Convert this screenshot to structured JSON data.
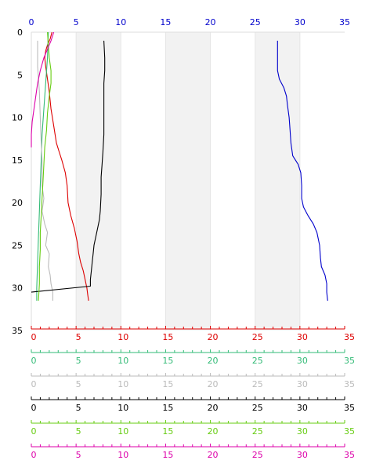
{
  "chart_data": {
    "type": "line",
    "orientation": "depth-profile",
    "y_axis": {
      "range": [
        0,
        35
      ],
      "ticks": [
        "0",
        "5",
        "10",
        "15",
        "20",
        "25",
        "30",
        "35"
      ],
      "inverted": true
    },
    "bands": [
      {
        "from": 5,
        "to": 10,
        "color": "#f2f2f2"
      },
      {
        "from": 15,
        "to": 20,
        "color": "#f2f2f2"
      },
      {
        "from": 25,
        "to": 30,
        "color": "#f2f2f2"
      }
    ],
    "axes": [
      {
        "id": "blue",
        "position": "top",
        "color": "#0000cc",
        "range": [
          0,
          35
        ],
        "ticks": [
          "0",
          "5",
          "10",
          "15",
          "20",
          "25",
          "30",
          "35"
        ]
      },
      {
        "id": "red",
        "position": "bottom",
        "color": "#dd0000",
        "range": [
          0,
          35
        ],
        "ticks": [
          "0",
          "5",
          "10",
          "15",
          "20",
          "25",
          "30",
          "35"
        ]
      },
      {
        "id": "mediumgreen",
        "position": "bottom",
        "color": "#33bb77",
        "range": [
          0,
          35
        ],
        "ticks": [
          "0",
          "5",
          "10",
          "15",
          "20",
          "25",
          "30",
          "35"
        ]
      },
      {
        "id": "gray",
        "position": "bottom",
        "color": "#bbbbbb",
        "range": [
          0,
          35
        ],
        "ticks": [
          "0",
          "5",
          "10",
          "15",
          "20",
          "25",
          "30",
          "35"
        ]
      },
      {
        "id": "black",
        "position": "bottom",
        "color": "#000000",
        "range": [
          0,
          35
        ],
        "ticks": [
          "0",
          "5",
          "10",
          "15",
          "20",
          "25",
          "30",
          "35"
        ]
      },
      {
        "id": "lightgreen",
        "position": "bottom",
        "color": "#66cc11",
        "range": [
          0,
          35
        ],
        "ticks": [
          "0",
          "5",
          "10",
          "15",
          "20",
          "25",
          "30",
          "35"
        ]
      },
      {
        "id": "magenta",
        "position": "bottom",
        "color": "#dd00aa",
        "range": [
          0,
          35
        ],
        "ticks": [
          "0",
          "5",
          "10",
          "15",
          "20",
          "25",
          "30",
          "35"
        ]
      }
    ],
    "series": [
      {
        "axis": "blue",
        "color": "#0000cc",
        "points": [
          [
            27.5,
            1.0
          ],
          [
            27.5,
            3.0
          ],
          [
            27.5,
            4.5
          ],
          [
            27.7,
            5.5
          ],
          [
            28.2,
            6.5
          ],
          [
            28.5,
            7.5
          ],
          [
            28.6,
            8.5
          ],
          [
            28.8,
            10.0
          ],
          [
            28.9,
            11.5
          ],
          [
            29.0,
            13.0
          ],
          [
            29.2,
            14.5
          ],
          [
            29.8,
            15.5
          ],
          [
            30.1,
            16.5
          ],
          [
            30.2,
            18.0
          ],
          [
            30.2,
            19.5
          ],
          [
            30.4,
            20.5
          ],
          [
            30.9,
            21.5
          ],
          [
            31.5,
            22.5
          ],
          [
            31.9,
            23.5
          ],
          [
            32.2,
            25.0
          ],
          [
            32.3,
            26.5
          ],
          [
            32.4,
            27.5
          ],
          [
            32.8,
            28.5
          ],
          [
            33.0,
            29.5
          ],
          [
            33.0,
            30.5
          ],
          [
            33.1,
            31.5
          ]
        ]
      },
      {
        "axis": "red",
        "color": "#dd0000",
        "points": [
          [
            2.3,
            0.0
          ],
          [
            2.1,
            0.8
          ],
          [
            1.8,
            1.5
          ],
          [
            1.6,
            2.2
          ],
          [
            1.5,
            3.0
          ],
          [
            1.6,
            4.0
          ],
          [
            1.8,
            5.5
          ],
          [
            2.0,
            7.0
          ],
          [
            2.2,
            9.0
          ],
          [
            2.5,
            11.0
          ],
          [
            2.8,
            13.0
          ],
          [
            3.1,
            14.0
          ],
          [
            3.4,
            15.0
          ],
          [
            3.8,
            16.5
          ],
          [
            4.0,
            18.0
          ],
          [
            4.1,
            20.0
          ],
          [
            4.4,
            21.5
          ],
          [
            4.8,
            23.0
          ],
          [
            5.1,
            24.5
          ],
          [
            5.3,
            26.0
          ],
          [
            5.5,
            27.0
          ],
          [
            5.8,
            28.0
          ],
          [
            6.0,
            29.0
          ],
          [
            6.2,
            30.0
          ],
          [
            6.3,
            30.8
          ],
          [
            6.4,
            31.5
          ]
        ]
      },
      {
        "axis": "mediumgreen",
        "color": "#33bb77",
        "points": [
          [
            1.9,
            0.0
          ],
          [
            1.8,
            3.0
          ],
          [
            1.6,
            6.0
          ],
          [
            1.4,
            9.0
          ],
          [
            1.2,
            12.0
          ],
          [
            1.1,
            15.0
          ],
          [
            1.0,
            18.0
          ],
          [
            0.9,
            21.0
          ],
          [
            0.8,
            24.0
          ],
          [
            0.7,
            27.0
          ],
          [
            0.6,
            30.0
          ],
          [
            0.6,
            31.5
          ]
        ]
      },
      {
        "axis": "gray",
        "color": "#bbbbbb",
        "points": [
          [
            0.7,
            1.0
          ],
          [
            0.7,
            4.0
          ],
          [
            0.9,
            7.0
          ],
          [
            1.0,
            10.0
          ],
          [
            1.1,
            13.0
          ],
          [
            1.2,
            15.0
          ],
          [
            1.2,
            18.0
          ],
          [
            1.4,
            19.5
          ],
          [
            1.2,
            21.0
          ],
          [
            1.5,
            22.5
          ],
          [
            1.8,
            23.5
          ],
          [
            1.6,
            25.0
          ],
          [
            2.0,
            26.0
          ],
          [
            1.9,
            27.5
          ],
          [
            2.1,
            28.5
          ],
          [
            2.2,
            29.5
          ],
          [
            2.4,
            30.5
          ],
          [
            2.4,
            31.5
          ]
        ]
      },
      {
        "axis": "black",
        "color": "#000000",
        "points": [
          [
            0.0,
            30.5
          ],
          [
            6.6,
            29.8
          ],
          [
            6.6,
            29.0
          ],
          [
            6.7,
            28.0
          ],
          [
            6.8,
            27.0
          ],
          [
            6.9,
            26.0
          ],
          [
            7.0,
            25.0
          ],
          [
            7.2,
            24.0
          ],
          [
            7.4,
            23.0
          ],
          [
            7.6,
            22.0
          ],
          [
            7.7,
            21.0
          ],
          [
            7.8,
            19.0
          ],
          [
            7.8,
            17.0
          ],
          [
            7.9,
            15.5
          ],
          [
            8.0,
            14.0
          ],
          [
            8.1,
            12.0
          ],
          [
            8.1,
            10.0
          ],
          [
            8.1,
            8.0
          ],
          [
            8.1,
            6.0
          ],
          [
            8.2,
            4.5
          ],
          [
            8.2,
            3.0
          ],
          [
            8.1,
            1.0
          ]
        ]
      },
      {
        "axis": "lightgreen",
        "color": "#66cc11",
        "points": [
          [
            1.8,
            0.0
          ],
          [
            1.9,
            1.5
          ],
          [
            2.0,
            3.0
          ],
          [
            2.2,
            4.5
          ],
          [
            2.2,
            6.0
          ],
          [
            2.0,
            7.5
          ],
          [
            1.8,
            9.5
          ],
          [
            1.7,
            11.5
          ],
          [
            1.5,
            13.5
          ],
          [
            1.4,
            15.5
          ],
          [
            1.3,
            17.5
          ],
          [
            1.2,
            19.5
          ],
          [
            1.1,
            21.5
          ],
          [
            1.0,
            23.5
          ],
          [
            1.0,
            25.5
          ],
          [
            0.9,
            27.5
          ],
          [
            0.9,
            29.5
          ],
          [
            0.8,
            31.5
          ]
        ]
      },
      {
        "axis": "magenta",
        "color": "#dd00aa",
        "points": [
          [
            2.5,
            0.0
          ],
          [
            2.2,
            1.0
          ],
          [
            1.8,
            2.0
          ],
          [
            1.4,
            3.0
          ],
          [
            1.0,
            4.5
          ],
          [
            0.7,
            6.0
          ],
          [
            0.5,
            7.5
          ],
          [
            0.3,
            9.0
          ],
          [
            0.1,
            10.5
          ],
          [
            0.0,
            12.0
          ],
          [
            0.0,
            13.5
          ]
        ]
      }
    ]
  }
}
